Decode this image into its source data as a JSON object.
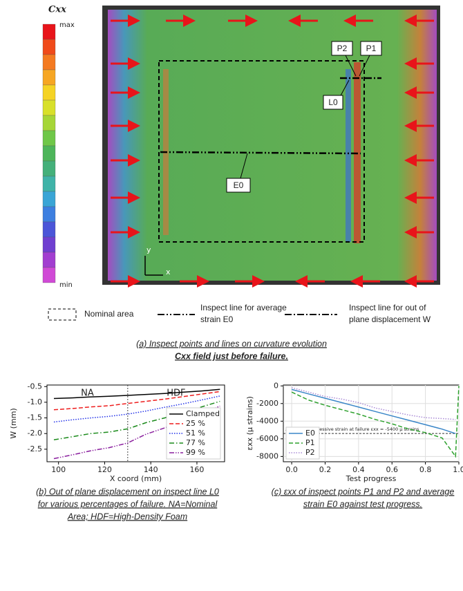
{
  "panel_a": {
    "colorbar_title": "Cxx",
    "colorbar_max": "max",
    "colorbar_min": "min",
    "callouts": [
      "P2",
      "P1",
      "L0",
      "E0"
    ],
    "axis_x": "x",
    "axis_y": "y",
    "legend": {
      "nominal": "Nominal area",
      "avg_line": [
        "Inspect line for average",
        "strain E0"
      ],
      "oop_line": [
        "Inspect line for out of",
        "plane displacement W"
      ]
    },
    "caption": [
      "(a) Inspect points and lines on curvature evolution",
      "Cxx field just before failure."
    ]
  },
  "chart_data": [
    {
      "type": "line",
      "xlabel": "X coord (mm)",
      "ylabel": "W (mm)",
      "x": [
        98,
        106,
        114,
        122,
        130,
        138,
        146,
        154,
        162,
        170
      ],
      "series": [
        {
          "name": "Clamped",
          "color": "#000000",
          "style": "solid",
          "values": [
            -0.88,
            -0.86,
            -0.83,
            -0.81,
            -0.78,
            -0.75,
            -0.72,
            -0.68,
            -0.64,
            -0.59
          ]
        },
        {
          "name": "25 %",
          "color": "#ee1c1c",
          "style": "dashed",
          "values": [
            -1.24,
            -1.2,
            -1.15,
            -1.11,
            -1.04,
            -0.97,
            -0.9,
            -0.82,
            -0.74,
            -0.66
          ]
        },
        {
          "name": "51 %",
          "color": "#1f2fe8",
          "style": "dotted",
          "values": [
            -1.63,
            -1.56,
            -1.5,
            -1.45,
            -1.38,
            -1.28,
            -1.16,
            -1.05,
            -0.93,
            -0.8
          ]
        },
        {
          "name": "77 %",
          "color": "#1a8a1a",
          "style": "dashdot",
          "values": [
            -2.2,
            -2.1,
            -2.0,
            -1.95,
            -1.85,
            -1.65,
            -1.5,
            -1.33,
            -1.15,
            -0.97
          ]
        },
        {
          "name": "99 %",
          "color": "#8a1f9e",
          "style": "dashdotdot",
          "values": [
            -2.8,
            -2.68,
            -2.55,
            -2.45,
            -2.3,
            -2.02,
            -1.82,
            -1.6,
            -1.38,
            -1.12
          ]
        }
      ],
      "xlim": [
        95,
        172
      ],
      "ylim": [
        -2.9,
        -0.45
      ],
      "xticks": [
        100,
        120,
        140,
        160
      ],
      "yticks": [
        -0.5,
        {
          "value": -1,
          "label": "-1.0"
        },
        -1.5,
        {
          "value": -2,
          "label": "-2.0"
        },
        -2.5
      ],
      "grid": false,
      "legend": "lower right",
      "divider_x": 130,
      "region_labels": [
        "NA",
        "HDF"
      ],
      "caption": [
        "(b) Out of plane displacement on inspect line L0",
        "for various percentages of failure. NA=Nominal",
        "Area; HDF=High-Density Foam"
      ]
    },
    {
      "type": "line",
      "xlabel": "Test progress",
      "ylabel": "εxx (μ strains)",
      "x": [
        0,
        0.1,
        0.2,
        0.3,
        0.4,
        0.5,
        0.6,
        0.7,
        0.8,
        0.9,
        0.98,
        1.0
      ],
      "series": [
        {
          "name": "E0",
          "color": "#3a86c8",
          "style": "solid",
          "values": [
            -400,
            -900,
            -1400,
            -1900,
            -2400,
            -2900,
            -3400,
            -3900,
            -4400,
            -4900,
            -5400,
            null
          ]
        },
        {
          "name": "P1",
          "color": "#2ca02c",
          "style": "dashed",
          "values": [
            -700,
            -1600,
            -2200,
            -2700,
            -3200,
            -3800,
            -4300,
            -4900,
            -5300,
            -5900,
            -8000,
            0
          ]
        },
        {
          "name": "P2",
          "color": "#a98ad6",
          "style": "dotted",
          "values": [
            -200,
            -700,
            -1200,
            -1500,
            -1900,
            -2500,
            -2900,
            -3300,
            -3600,
            -3700,
            -3800,
            null
          ]
        }
      ],
      "xlim": [
        -0.05,
        1.0
      ],
      "ylim": [
        -8600,
        100
      ],
      "xticks": [
        {
          "value": 0,
          "label": "0.0"
        },
        0.2,
        0.4,
        0.6,
        0.8,
        {
          "value": 1,
          "label": "1.0"
        }
      ],
      "yticks": [
        0,
        -2000,
        -4000,
        -6000,
        -8000
      ],
      "grid": true,
      "legend": "lower left",
      "reference_y": -5400,
      "reference_label": "Average compressive strain at failure εxx = -5400 μ strains",
      "caption": [
        "(c) εxx of inspect points P1 and P2 and average",
        "strain E0 against test progress."
      ]
    }
  ]
}
